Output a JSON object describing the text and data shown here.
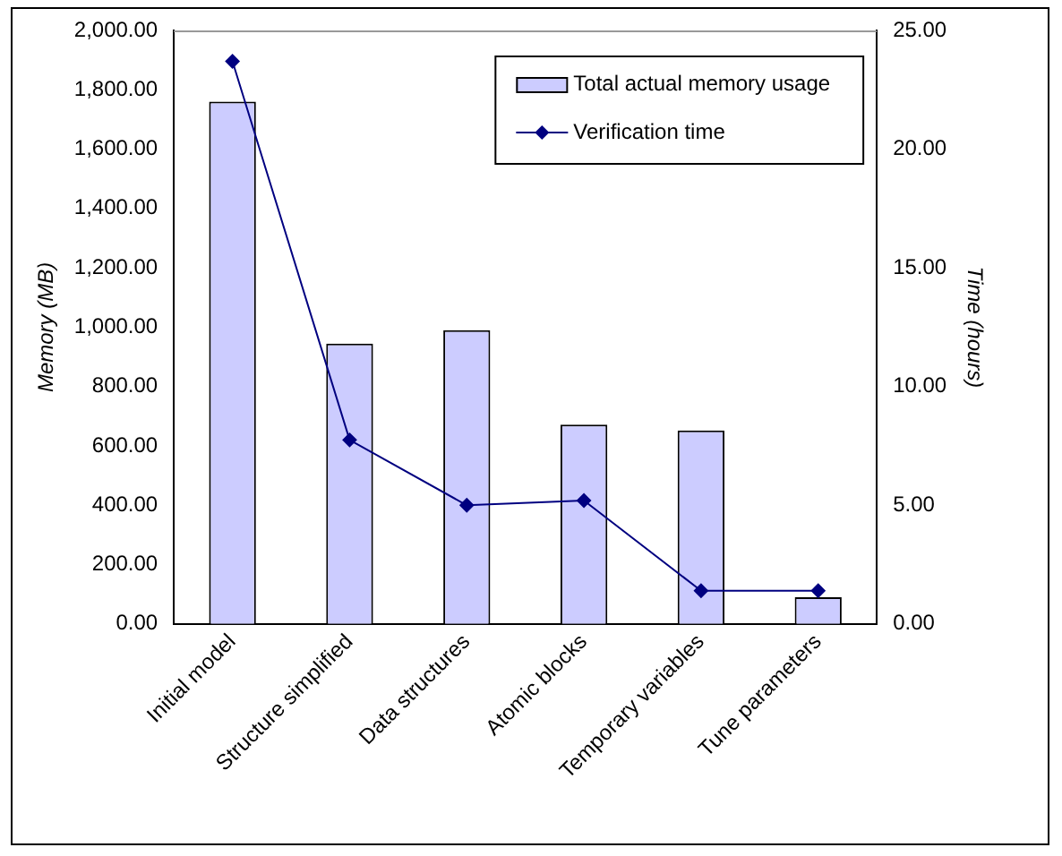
{
  "chart_data": {
    "type": "bar",
    "categories": [
      "Initial model",
      "Structure simplified",
      "Data structures",
      "Atomic blocks",
      "Temporary variables",
      "Tune parameters"
    ],
    "ylabel": "Memory (MB)",
    "y2label": "Time (hours)",
    "series": [
      {
        "name": "Total actual memory usage",
        "color": "#ccccff",
        "values": [
          1760,
          945,
          990,
          672,
          652,
          90
        ]
      },
      {
        "name": "Verification time",
        "type": "line",
        "axis": "y2",
        "color": "#000080",
        "marker": "diamond",
        "values": [
          23.7,
          7.75,
          5.0,
          5.2,
          1.4,
          1.4
        ]
      }
    ],
    "ylim": [
      0,
      2000
    ],
    "yticks": [
      {
        "value": 0,
        "label": "0.00"
      },
      {
        "value": 200,
        "label": "200.00"
      },
      {
        "value": 400,
        "label": "400.00"
      },
      {
        "value": 600,
        "label": "600.00"
      },
      {
        "value": 800,
        "label": "800.00"
      },
      {
        "value": 1000,
        "label": "1,000.00"
      },
      {
        "value": 1200,
        "label": "1,200.00"
      },
      {
        "value": 1400,
        "label": "1,400.00"
      },
      {
        "value": 1600,
        "label": "1,600.00"
      },
      {
        "value": 1800,
        "label": "1,800.00"
      },
      {
        "value": 2000,
        "label": "2,000.00"
      }
    ],
    "y2lim": [
      0,
      25
    ],
    "y2ticks": [
      {
        "value": 0,
        "label": "0.00"
      },
      {
        "value": 5,
        "label": "5.00"
      },
      {
        "value": 10,
        "label": "10.00"
      },
      {
        "value": 15,
        "label": "15.00"
      },
      {
        "value": 20,
        "label": "20.00"
      },
      {
        "value": 25,
        "label": "25.00"
      }
    ],
    "grid": false,
    "legend": "top right"
  }
}
